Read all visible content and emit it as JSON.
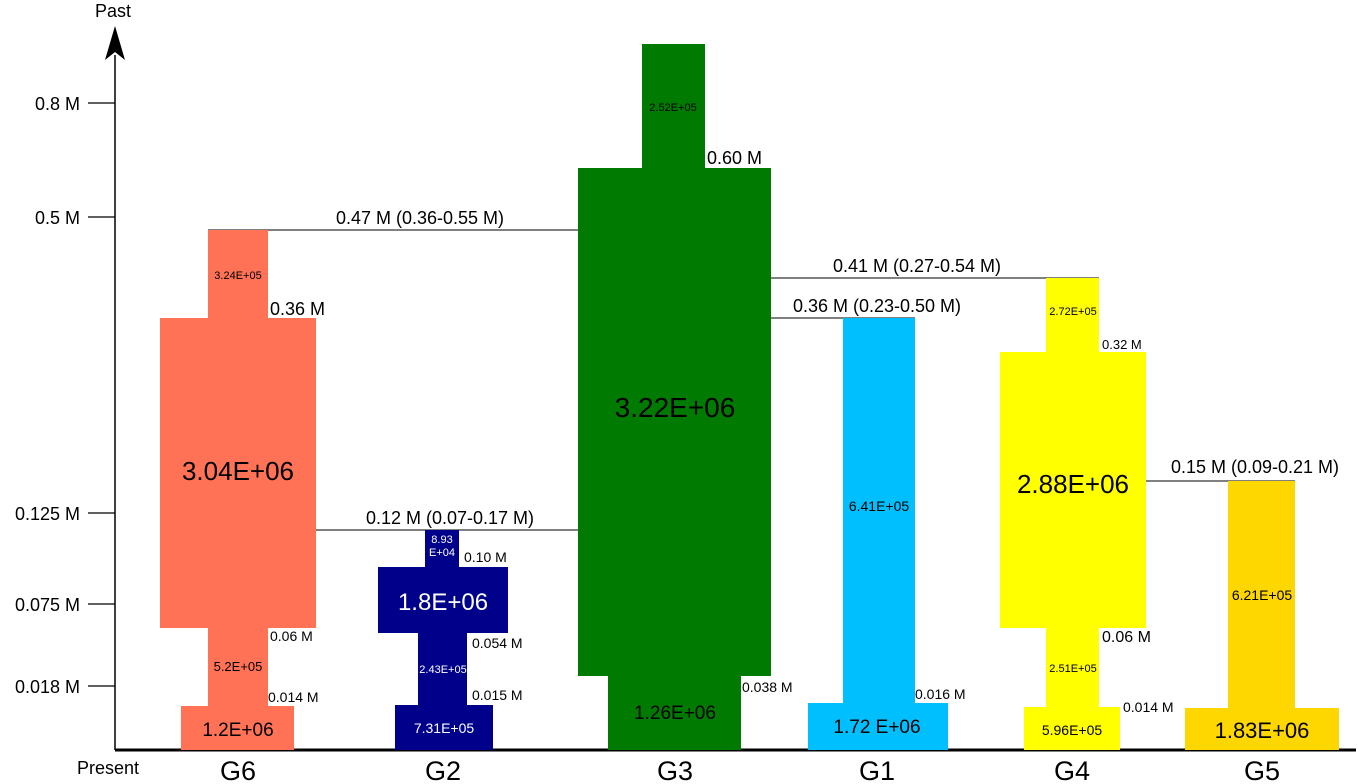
{
  "axis": {
    "top_label": "Past",
    "bottom_label": "Present",
    "ticks": [
      "0.8 M",
      "0.5 M",
      "0.125 M",
      "0.075 M",
      "0.018 M"
    ]
  },
  "groups": [
    {
      "name": "G6",
      "color": "#FF7256",
      "sizes": {
        "ancestral": "3.24E+05",
        "main": "3.04E+06",
        "recent": "5.2E+05",
        "current": "1.2E+06"
      },
      "times": {
        "t1": "0.36 M",
        "t2": "0.06 M",
        "t3": "0.014 M"
      }
    },
    {
      "name": "G2",
      "color": "#00008B",
      "sizes": {
        "ancestral_line1": "8.93",
        "ancestral_line2": "E+04",
        "main": "1.8E+06",
        "recent": "2.43E+05",
        "current": "7.31E+05"
      },
      "times": {
        "t1": "0.10 M",
        "t2": "0.054 M",
        "t3": "0.015 M"
      }
    },
    {
      "name": "G3",
      "color": "#007A00",
      "sizes": {
        "ancestral": "2.52E+05",
        "main": "3.22E+06",
        "current": "1.26E+06"
      },
      "times": {
        "t1": "0.60 M",
        "t2": "0.038 M"
      }
    },
    {
      "name": "G1",
      "color": "#00BFFF",
      "sizes": {
        "main": "6.41E+05",
        "current": "1.72 E+06"
      },
      "times": {
        "t1": "0.016 M"
      }
    },
    {
      "name": "G4",
      "color": "#FFFF00",
      "sizes": {
        "ancestral": "2.72E+05",
        "main": "2.88E+06",
        "recent": "2.51E+05",
        "current": "5.96E+05"
      },
      "times": {
        "t1": "0.32 M",
        "t2": "0.06 M",
        "t3": "0.014 M"
      }
    },
    {
      "name": "G5",
      "color": "#FFD700",
      "sizes": {
        "main": "6.21E+05",
        "current": "1.83E+06"
      },
      "times": {}
    }
  ],
  "splits": [
    {
      "label": "0.47 M (0.36-0.55 M)"
    },
    {
      "label": "0.12 M (0.07-0.17 M)"
    },
    {
      "label": "0.41 M (0.27-0.54 M)"
    },
    {
      "label": "0.36 M (0.23-0.50 M)"
    },
    {
      "label": "0.15 M (0.09-0.21 M)"
    }
  ]
}
